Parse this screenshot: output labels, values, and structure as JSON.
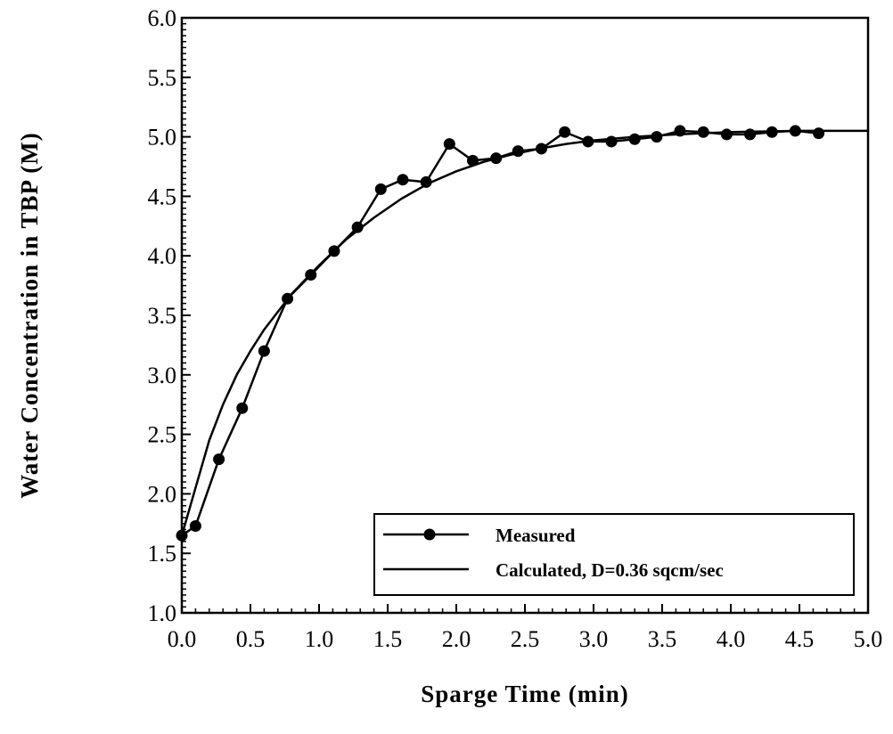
{
  "chart_data": {
    "type": "line",
    "title": "",
    "xlabel": "Sparge Time (min)",
    "ylabel": "Water Concentration in TBP (M)",
    "xlim": [
      0.0,
      5.0
    ],
    "ylim": [
      1.0,
      6.0
    ],
    "x_ticks": [
      "0.0",
      "0.5",
      "1.0",
      "1.5",
      "2.0",
      "2.5",
      "3.0",
      "3.5",
      "4.0",
      "4.5",
      "5.0"
    ],
    "y_ticks": [
      "1.0",
      "1.5",
      "2.0",
      "2.5",
      "3.0",
      "3.5",
      "4.0",
      "4.5",
      "5.0",
      "5.5",
      "6.0"
    ],
    "grid": false,
    "legend_position": "bottom-right",
    "series": [
      {
        "name": "Measured",
        "style": "line-with-markers",
        "color": "#000000",
        "x": [
          0.0,
          0.1,
          0.27,
          0.44,
          0.6,
          0.77,
          0.94,
          1.11,
          1.28,
          1.45,
          1.61,
          1.78,
          1.95,
          2.12,
          2.29,
          2.45,
          2.62,
          2.79,
          2.96,
          3.13,
          3.3,
          3.46,
          3.63,
          3.8,
          3.97,
          4.14,
          4.3,
          4.47,
          4.64
        ],
        "y": [
          1.65,
          1.73,
          2.29,
          2.72,
          3.2,
          3.64,
          3.84,
          4.04,
          4.24,
          4.56,
          4.64,
          4.62,
          4.94,
          4.8,
          4.82,
          4.88,
          4.9,
          5.04,
          4.96,
          4.96,
          4.98,
          5.0,
          5.05,
          5.04,
          5.02,
          5.02,
          5.04,
          5.05,
          5.03
        ]
      },
      {
        "name": "Calculated, D=0.36 sqcm/sec",
        "style": "line",
        "color": "#000000",
        "x": [
          0.0,
          0.1,
          0.2,
          0.3,
          0.4,
          0.5,
          0.6,
          0.8,
          1.0,
          1.2,
          1.4,
          1.6,
          1.8,
          2.0,
          2.2,
          2.4,
          2.6,
          2.8,
          3.0,
          3.3,
          3.6,
          4.0,
          4.5,
          5.0
        ],
        "y": [
          1.65,
          2.05,
          2.45,
          2.75,
          3.0,
          3.2,
          3.38,
          3.68,
          3.92,
          4.14,
          4.32,
          4.48,
          4.61,
          4.71,
          4.79,
          4.85,
          4.9,
          4.94,
          4.97,
          5.0,
          5.02,
          5.04,
          5.05,
          5.05
        ]
      }
    ]
  }
}
